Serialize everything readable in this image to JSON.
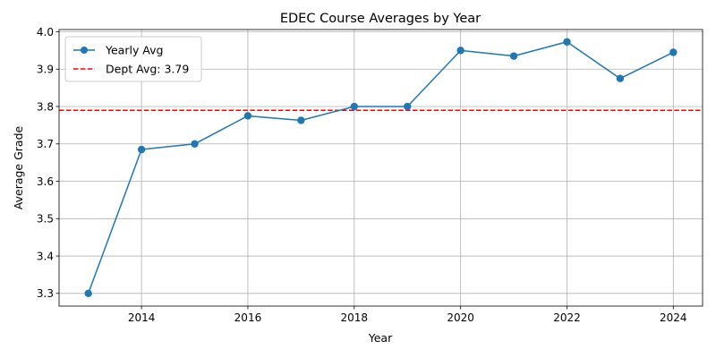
{
  "chart_data": {
    "type": "line",
    "title": "EDEC Course Averages by Year",
    "xlabel": "Year",
    "ylabel": "Average Grade",
    "xlim": [
      2012.45,
      2024.55
    ],
    "ylim": [
      3.266,
      4.006
    ],
    "xticks": [
      2014,
      2016,
      2018,
      2020,
      2022,
      2024
    ],
    "yticks": [
      3.3,
      3.4,
      3.5,
      3.6,
      3.7,
      3.8,
      3.9,
      4.0
    ],
    "ytick_labels": [
      "3.3",
      "3.4",
      "3.5",
      "3.6",
      "3.7",
      "3.8",
      "3.9",
      "4.0"
    ],
    "grid": true,
    "legend_position": "upper-left",
    "series": [
      {
        "name": "Yearly Avg",
        "color": "#1f77b4",
        "style": "solid-with-circle-markers",
        "x": [
          2013,
          2014,
          2015,
          2016,
          2017,
          2018,
          2019,
          2020,
          2021,
          2022,
          2023,
          2024
        ],
        "y": [
          3.3,
          3.685,
          3.7,
          3.775,
          3.763,
          3.8,
          3.8,
          3.95,
          3.935,
          3.973,
          3.875,
          3.945
        ]
      }
    ],
    "reference_lines": [
      {
        "name": "Dept Avg: 3.79",
        "orientation": "horizontal",
        "value": 3.79,
        "color": "#ff0000",
        "style": "dashed"
      }
    ]
  }
}
